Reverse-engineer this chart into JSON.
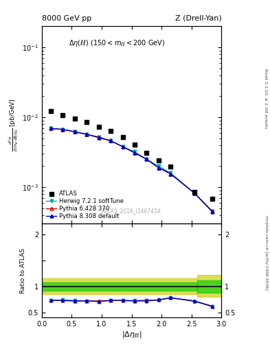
{
  "title_left": "8000 GeV pp",
  "title_right": "Z (Drell-Yan)",
  "watermark": "ATLAS_2016_I1467454",
  "right_label1": "Rivet 3.1.10, ≥ 2.1M events",
  "right_label2": "mcplots.cern.ch [arXiv:1306.3436]",
  "xlim": [
    0,
    3.0
  ],
  "ylim_main": [
    0.0003,
    0.2
  ],
  "ylim_ratio": [
    0.4,
    2.2
  ],
  "atlas_x": [
    0.15,
    0.35,
    0.55,
    0.75,
    0.95,
    1.15,
    1.35,
    1.55,
    1.75,
    1.95,
    2.15,
    2.55,
    2.85
  ],
  "atlas_y": [
    0.0124,
    0.0108,
    0.0096,
    0.0086,
    0.0073,
    0.0063,
    0.0052,
    0.0041,
    0.0031,
    0.0024,
    0.00195,
    0.00085,
    0.00068
  ],
  "herwig_x": [
    0.15,
    0.35,
    0.55,
    0.75,
    0.95,
    1.15,
    1.35,
    1.55,
    1.75,
    1.95,
    2.15,
    2.55,
    2.85
  ],
  "herwig_y": [
    0.0069,
    0.0067,
    0.0062,
    0.0057,
    0.0052,
    0.0046,
    0.0038,
    0.0032,
    0.0025,
    0.002,
    0.0016,
    0.00082,
    0.00045
  ],
  "pythia6_x": [
    0.15,
    0.35,
    0.55,
    0.75,
    0.95,
    1.15,
    1.35,
    1.55,
    1.75,
    1.95,
    2.15,
    2.55,
    2.85
  ],
  "pythia6_y": [
    0.0069,
    0.0067,
    0.0062,
    0.0057,
    0.0052,
    0.0046,
    0.0038,
    0.0031,
    0.0025,
    0.0019,
    0.00155,
    0.00082,
    0.00045
  ],
  "pythia8_x": [
    0.15,
    0.35,
    0.55,
    0.75,
    0.95,
    1.15,
    1.35,
    1.55,
    1.75,
    1.95,
    2.15,
    2.55,
    2.85
  ],
  "pythia8_y": [
    0.0069,
    0.0067,
    0.0062,
    0.0057,
    0.0051,
    0.0046,
    0.0038,
    0.0031,
    0.0025,
    0.0019,
    0.00155,
    0.00082,
    0.00044
  ],
  "herwig_ratio": [
    0.73,
    0.74,
    0.73,
    0.72,
    0.71,
    0.73,
    0.73,
    0.73,
    0.73,
    0.74,
    0.78,
    0.71,
    0.62
  ],
  "pythia6_ratio": [
    0.73,
    0.73,
    0.72,
    0.72,
    0.72,
    0.73,
    0.73,
    0.72,
    0.73,
    0.74,
    0.78,
    0.72,
    0.62
  ],
  "pythia8_ratio": [
    0.73,
    0.73,
    0.72,
    0.72,
    0.71,
    0.73,
    0.73,
    0.72,
    0.72,
    0.74,
    0.78,
    0.72,
    0.61
  ],
  "color_herwig": "#00aaaa",
  "color_pythia6": "#cc0000",
  "color_pythia8": "#0000cc",
  "color_atlas": "#000000",
  "color_green": "#00cc00",
  "color_yellow": "#cccc00"
}
